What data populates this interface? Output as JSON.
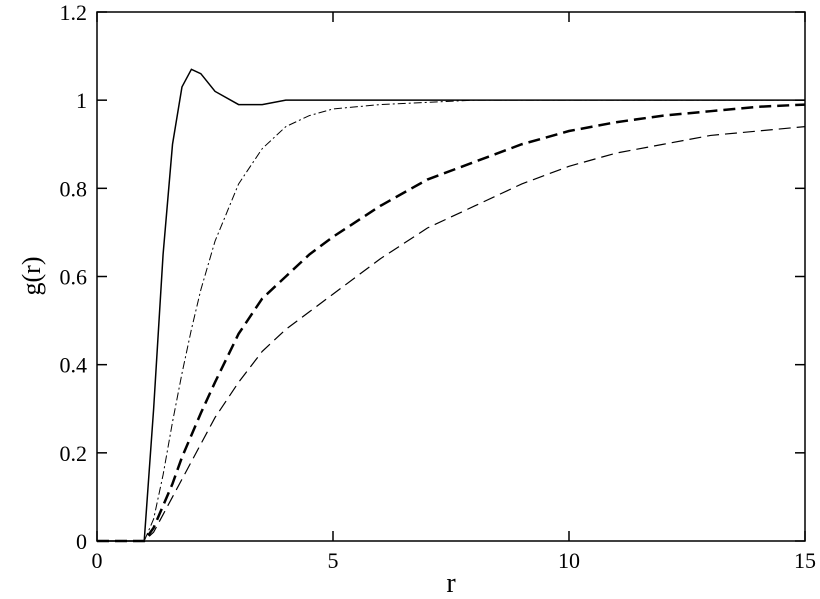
{
  "chart_data": {
    "type": "line",
    "xlabel": "r",
    "ylabel": "g(r)",
    "x": [
      0,
      0.5,
      1,
      1.2,
      1.4,
      1.6,
      1.8,
      2,
      2.2,
      2.5,
      3,
      3.5,
      4,
      4.5,
      5,
      6,
      7,
      8,
      9,
      10,
      11,
      12,
      13,
      14,
      15
    ],
    "series": [
      {
        "color": "#000000",
        "dash": "solid",
        "width": 1.5,
        "values": [
          0,
          0,
          0,
          0.3,
          0.65,
          0.9,
          1.03,
          1.07,
          1.06,
          1.02,
          0.99,
          0.99,
          1.0,
          1.0,
          1.0,
          1.0,
          1.0,
          1.0,
          1.0,
          1.0,
          1.0,
          1.0,
          1.0,
          1.0,
          1.0
        ]
      },
      {
        "color": "#000000",
        "dash": "dashdot",
        "width": 1,
        "values": [
          0,
          0,
          0,
          0.05,
          0.15,
          0.27,
          0.38,
          0.48,
          0.57,
          0.68,
          0.81,
          0.89,
          0.94,
          0.965,
          0.98,
          0.99,
          0.995,
          1.0,
          1.0,
          1.0,
          1.0,
          1.0,
          1.0,
          1.0,
          1.0
        ]
      },
      {
        "color": "#000000",
        "dash": "dashed",
        "width": 2.5,
        "values": [
          0,
          0,
          0,
          0.03,
          0.08,
          0.13,
          0.19,
          0.24,
          0.29,
          0.36,
          0.47,
          0.55,
          0.6,
          0.65,
          0.69,
          0.76,
          0.82,
          0.86,
          0.9,
          0.93,
          0.95,
          0.965,
          0.975,
          0.985,
          0.99
        ]
      },
      {
        "color": "#000000",
        "dash": "dashed",
        "width": 1.2,
        "values": [
          0,
          0,
          0,
          0.02,
          0.06,
          0.1,
          0.14,
          0.18,
          0.22,
          0.28,
          0.36,
          0.43,
          0.48,
          0.52,
          0.56,
          0.64,
          0.71,
          0.76,
          0.81,
          0.85,
          0.88,
          0.9,
          0.92,
          0.93,
          0.94
        ]
      }
    ],
    "xlim": [
      0,
      15
    ],
    "xticks": [
      0,
      5,
      10,
      15
    ],
    "ylim": [
      0,
      1.2
    ],
    "yticks": [
      0,
      0.2,
      0.4,
      0.6,
      0.8,
      1,
      1.2
    ]
  }
}
